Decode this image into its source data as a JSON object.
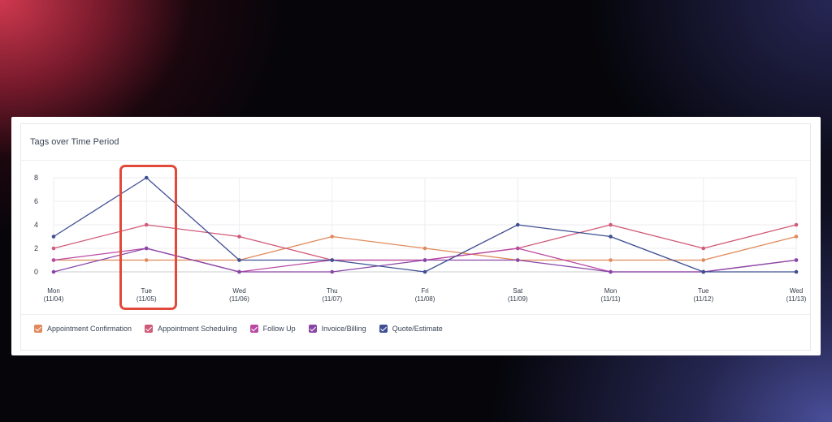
{
  "card": {
    "title": "Tags over Time Period"
  },
  "chart_data": {
    "type": "line",
    "title": "Tags over Time Period",
    "categories": [
      "Mon|(11/04)",
      "Tue|(11/05)",
      "Wed|(11/06)",
      "Thu|(11/07)",
      "Fri|(11/08)",
      "Sat|(11/09)",
      "Mon|(11/11)",
      "Tue|(11/12)",
      "Wed|(11/13)"
    ],
    "yticks": [
      0,
      2,
      4,
      6,
      8
    ],
    "ylim": [
      0,
      8
    ],
    "grid": true,
    "legend_position": "bottom-left",
    "series": [
      {
        "name": "Appointment Confirmation",
        "color": "#e08a5c",
        "values": [
          1,
          1,
          1,
          3,
          2,
          1,
          1,
          1,
          3
        ]
      },
      {
        "name": "Appointment Scheduling",
        "color": "#d05a78",
        "values": [
          2,
          4,
          3,
          1,
          1,
          2,
          4,
          2,
          4
        ]
      },
      {
        "name": "Follow Up",
        "color": "#b94aa4",
        "values": [
          1,
          2,
          0,
          1,
          1,
          2,
          0,
          0,
          1
        ]
      },
      {
        "name": "Invoice/Billing",
        "color": "#8a46a6",
        "values": [
          0,
          2,
          0,
          0,
          1,
          1,
          0,
          0,
          1
        ]
      },
      {
        "name": "Quote/Estimate",
        "color": "#3f4f93",
        "values": [
          3,
          8,
          1,
          1,
          0,
          4,
          3,
          0,
          0
        ]
      }
    ]
  }
}
